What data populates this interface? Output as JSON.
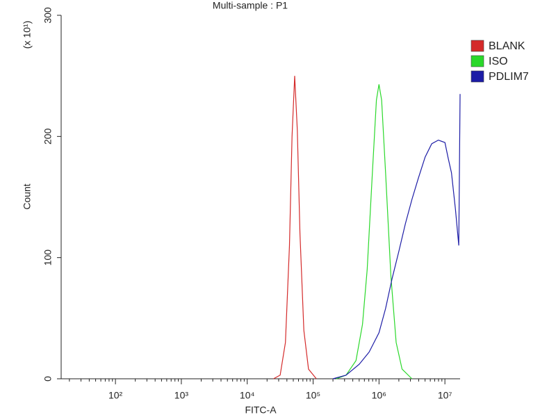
{
  "chart_data": {
    "type": "line",
    "title": "Multi-sample : P1",
    "x_label": "FITC-A",
    "y_label": "Count",
    "y_multiplier": "(x 10¹)",
    "xscale": "log",
    "xlim": [
      15,
      17000000
    ],
    "ylim": [
      0,
      300
    ],
    "xticks": [
      {
        "value": 100,
        "label": "10²"
      },
      {
        "value": 1000,
        "label": "10³"
      },
      {
        "value": 10000,
        "label": "10⁴"
      },
      {
        "value": 100000,
        "label": "10⁵"
      },
      {
        "value": 1000000,
        "label": "10⁶"
      },
      {
        "value": 10000000,
        "label": "10⁷"
      }
    ],
    "yticks": [
      0,
      100,
      200,
      300
    ],
    "grid": false,
    "legend": "right",
    "series": [
      {
        "name": "BLANK",
        "color": "#d42a2a",
        "x": [
          25000,
          31600,
          38000,
          43700,
          47900,
          52500,
          57500,
          63100,
          72400,
          85100,
          112000
        ],
        "values": [
          0,
          3,
          30,
          110,
          200,
          250,
          205,
          120,
          40,
          8,
          0
        ]
      },
      {
        "name": "ISO",
        "color": "#2ad82a",
        "x": [
          224000,
          316000,
          447000,
          562000,
          661000,
          794000,
          912000,
          1000000,
          1096000,
          1259000,
          1514000,
          1820000,
          2239000,
          3162000
        ],
        "values": [
          0,
          3,
          15,
          45,
          90,
          170,
          230,
          243,
          230,
          170,
          85,
          30,
          8,
          0
        ]
      },
      {
        "name": "PDLIM7",
        "color": "#1c1ca6",
        "x": [
          200000,
          316000,
          501000,
          708000,
          1000000,
          1259000,
          1585000,
          1995000,
          2512000,
          3162000,
          3981000,
          5012000,
          6310000,
          7943000,
          10000000,
          11220000,
          12590000,
          14450000,
          16220000,
          17000000
        ],
        "values": [
          0,
          3,
          12,
          22,
          38,
          58,
          83,
          105,
          128,
          148,
          166,
          183,
          194,
          197,
          195,
          182,
          170,
          140,
          110,
          235
        ]
      }
    ]
  }
}
